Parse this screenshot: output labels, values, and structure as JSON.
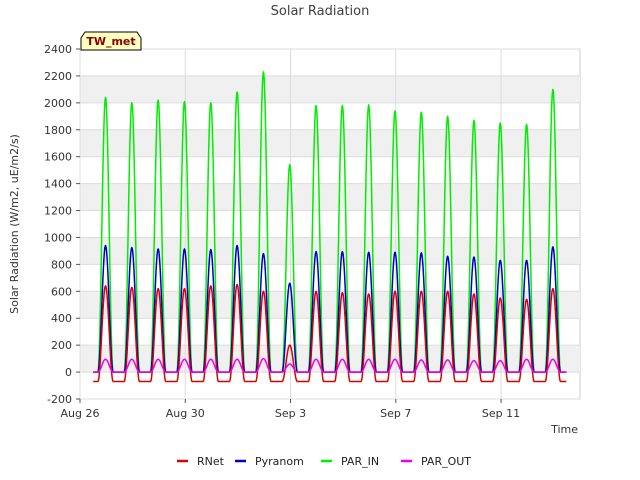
{
  "chart_data": {
    "type": "line",
    "title": "Solar Radiation",
    "xlabel": "Time",
    "ylabel": "Solar Radiation (W/m2, uE/m2/s)",
    "station_badge": "TW_met",
    "xlim": [
      "2023-08-26",
      "2023-09-14"
    ],
    "ylim": [
      -200,
      2400
    ],
    "yticks": [
      -200,
      0,
      200,
      400,
      600,
      800,
      1000,
      1200,
      1400,
      1600,
      1800,
      2000,
      2200,
      2400
    ],
    "xticks": [
      {
        "date": "2023-08-26",
        "label": "Aug 26"
      },
      {
        "date": "2023-08-30",
        "label": "Aug 30"
      },
      {
        "date": "2023-09-03",
        "label": "Sep 3"
      },
      {
        "date": "2023-09-07",
        "label": "Sep 7"
      },
      {
        "date": "2023-09-11",
        "label": "Sep 11"
      }
    ],
    "grid": true,
    "legend_position": "bottom",
    "days": [
      "2023-08-26",
      "2023-08-27",
      "2023-08-28",
      "2023-08-29",
      "2023-08-30",
      "2023-08-31",
      "2023-09-01",
      "2023-09-02",
      "2023-09-03",
      "2023-09-04",
      "2023-09-05",
      "2023-09-06",
      "2023-09-07",
      "2023-09-08",
      "2023-09-09",
      "2023-09-10",
      "2023-09-11",
      "2023-09-12"
    ],
    "series": [
      {
        "name": "RNet",
        "color": "#dd0000",
        "daily_peak": [
          640,
          630,
          620,
          620,
          640,
          650,
          600,
          200,
          600,
          590,
          580,
          600,
          600,
          600,
          580,
          550,
          540,
          620
        ],
        "night_value": -70
      },
      {
        "name": "Pyranom",
        "color": "#0000cc",
        "daily_peak": [
          940,
          925,
          915,
          915,
          910,
          940,
          880,
          660,
          895,
          895,
          890,
          890,
          885,
          860,
          855,
          830,
          830,
          930
        ],
        "night_value": 0
      },
      {
        "name": "PAR_IN",
        "color": "#00ee00",
        "daily_peak": [
          2040,
          2000,
          2020,
          2010,
          2000,
          2080,
          2230,
          1540,
          1980,
          1980,
          1985,
          1940,
          1930,
          1900,
          1870,
          1850,
          1840,
          2100
        ],
        "night_value": 0
      },
      {
        "name": "PAR_OUT",
        "color": "#ee00ee",
        "daily_peak": [
          95,
          95,
          95,
          95,
          95,
          95,
          100,
          60,
          95,
          95,
          95,
          95,
          90,
          90,
          85,
          85,
          95,
          95
        ],
        "night_value": 0
      }
    ]
  }
}
